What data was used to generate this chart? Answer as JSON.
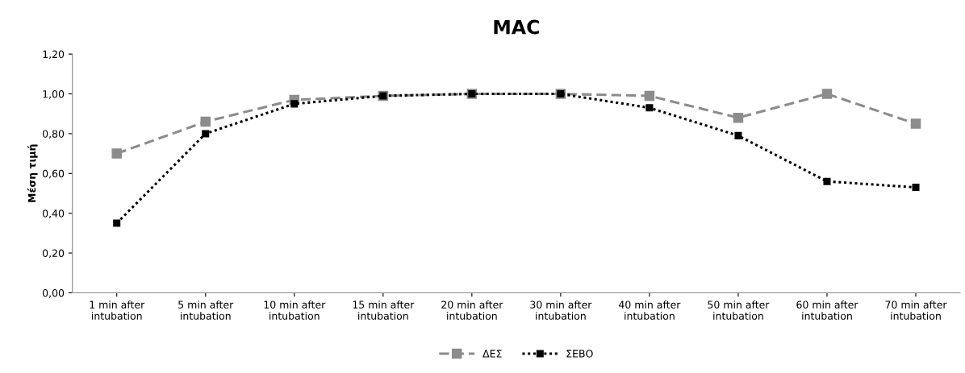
{
  "chart_data": {
    "type": "line",
    "title": "MAC",
    "ylabel": "Μέση τιμή",
    "categories": [
      "1 min after\nintubation",
      "5 min after\nintubation",
      "10 min after\nintubation",
      "15 min after\nintubation",
      "20 min after\nintubation",
      "30 min after\nintubation",
      "40 min after\nintubation",
      "50 min after\nintubation",
      "60 min after\nintubation",
      "70 min after\nintubation"
    ],
    "series": [
      {
        "name": "ΔΕΣ",
        "color": "#8c8c8c",
        "line_style": "dashed",
        "values": [
          0.7,
          0.86,
          0.97,
          0.99,
          1.0,
          1.0,
          0.99,
          0.88,
          1.0,
          0.85
        ]
      },
      {
        "name": "ΣΕΒΟ",
        "color": "#000000",
        "line_style": "dotted",
        "values": [
          0.35,
          0.8,
          0.95,
          0.99,
          1.0,
          1.0,
          0.93,
          0.79,
          0.56,
          0.53
        ]
      }
    ],
    "ylim": [
      0,
      1.2
    ],
    "yticks": [
      {
        "value": 0,
        "label": "0,00"
      },
      {
        "value": 0.2,
        "label": "0,20"
      },
      {
        "value": 0.4,
        "label": "0,40"
      },
      {
        "value": 0.6,
        "label": "0,60"
      },
      {
        "value": 0.8,
        "label": "0,80"
      },
      {
        "value": 1.0,
        "label": "1,00"
      },
      {
        "value": 1.2,
        "label": "1,20"
      }
    ],
    "marker": "square",
    "grid": false,
    "legend": "bottom"
  }
}
